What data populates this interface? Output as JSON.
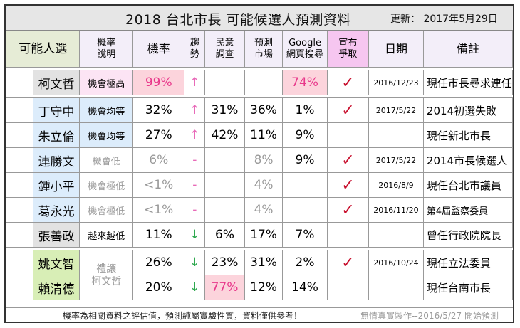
{
  "title": "2018  台北市長  可能候選人預測資料",
  "updated": "更新：  2017年5月29日",
  "headers": {
    "candidate": "可能人選",
    "eval_line1": "機率",
    "eval_line2": "說明",
    "probability": "機率",
    "trend_line1": "趨",
    "trend_line2": "勢",
    "poll_line1": "民意",
    "poll_line2": "調查",
    "market_line1": "預測",
    "market_line2": "市場",
    "google_line1": "Google",
    "google_line2": "網頁搜尋",
    "declared_line1": "宣布",
    "declared_line2": "爭取",
    "date": "日期",
    "note": "備註"
  },
  "rows": [
    {
      "name": "柯文哲",
      "eval": "機會極高",
      "prob": "99%",
      "trend": "↑",
      "poll": "",
      "market": "",
      "google": "74%",
      "declared": "✓",
      "date": "2016/12/23",
      "note": "現任市長尋求連任"
    },
    {
      "name": "丁守中",
      "eval": "機會均等",
      "prob": "32%",
      "trend": "↑",
      "poll": "31%",
      "market": "36%",
      "google": "1%",
      "declared": "✓",
      "date": "2017/5/22",
      "note": "2014初選失敗"
    },
    {
      "name": "朱立倫",
      "eval": "機會均等",
      "prob": "27%",
      "trend": "↑",
      "poll": "42%",
      "market": "11%",
      "google": "9%",
      "declared": "",
      "date": "",
      "note": "現任新北市長"
    },
    {
      "name": "連勝文",
      "eval": "機會低",
      "prob": "6%",
      "trend": "-",
      "poll": "",
      "market": "8%",
      "google": "9%",
      "declared": "✓",
      "date": "2017/5/22",
      "note": "2014市長候選人"
    },
    {
      "name": "鍾小平",
      "eval": "機會極低",
      "prob": "<1%",
      "trend": "-",
      "poll": "",
      "market": "4%",
      "google": "",
      "declared": "✓",
      "date": "2016/8/9",
      "note": "現任台北市議員"
    },
    {
      "name": "葛永光",
      "eval": "機會極低",
      "prob": "<1%",
      "trend": "-",
      "poll": "",
      "market": "4%",
      "google": "",
      "declared": "✓",
      "date": "2016/11/20",
      "note": "第4屆監察委員"
    },
    {
      "name": "張善政",
      "eval": "越來越低",
      "prob": "11%",
      "trend": "↓",
      "poll": "6%",
      "market": "17%",
      "google": "7%",
      "declared": "",
      "date": "",
      "note": "曾任行政院院長"
    },
    {
      "name": "姚文智",
      "eval_line1": "禮讓",
      "eval_line2": "柯文哲",
      "prob": "26%",
      "trend": "↓",
      "poll": "23%",
      "market": "31%",
      "google": "2%",
      "declared": "✓",
      "date": "2016/10/24",
      "note": "現任立法委員"
    },
    {
      "name": "賴清德",
      "prob": "20%",
      "trend": "↓",
      "poll": "77%",
      "market": "12%",
      "google": "14%",
      "declared": "",
      "date": "",
      "note": "現任台南市長"
    }
  ],
  "footer": {
    "disclaimer": "機率為相關資料之評估值，預測純屬實驗性質，資料僅供參考！",
    "credit": "無情真實製作--2016/5/27 開始預測"
  },
  "colors": {
    "header_bg": "#f3eef9",
    "declared_header": "#f6c6f0",
    "highlight": "#fcd4dc",
    "kmt_blue": "#dcecfb",
    "dpp_green": "#d8eeb6",
    "indep_grey": "#e2e2e2",
    "trend_up": "#e86ab8",
    "trend_down": "#2ea84f",
    "check_red": "#c8102e"
  }
}
